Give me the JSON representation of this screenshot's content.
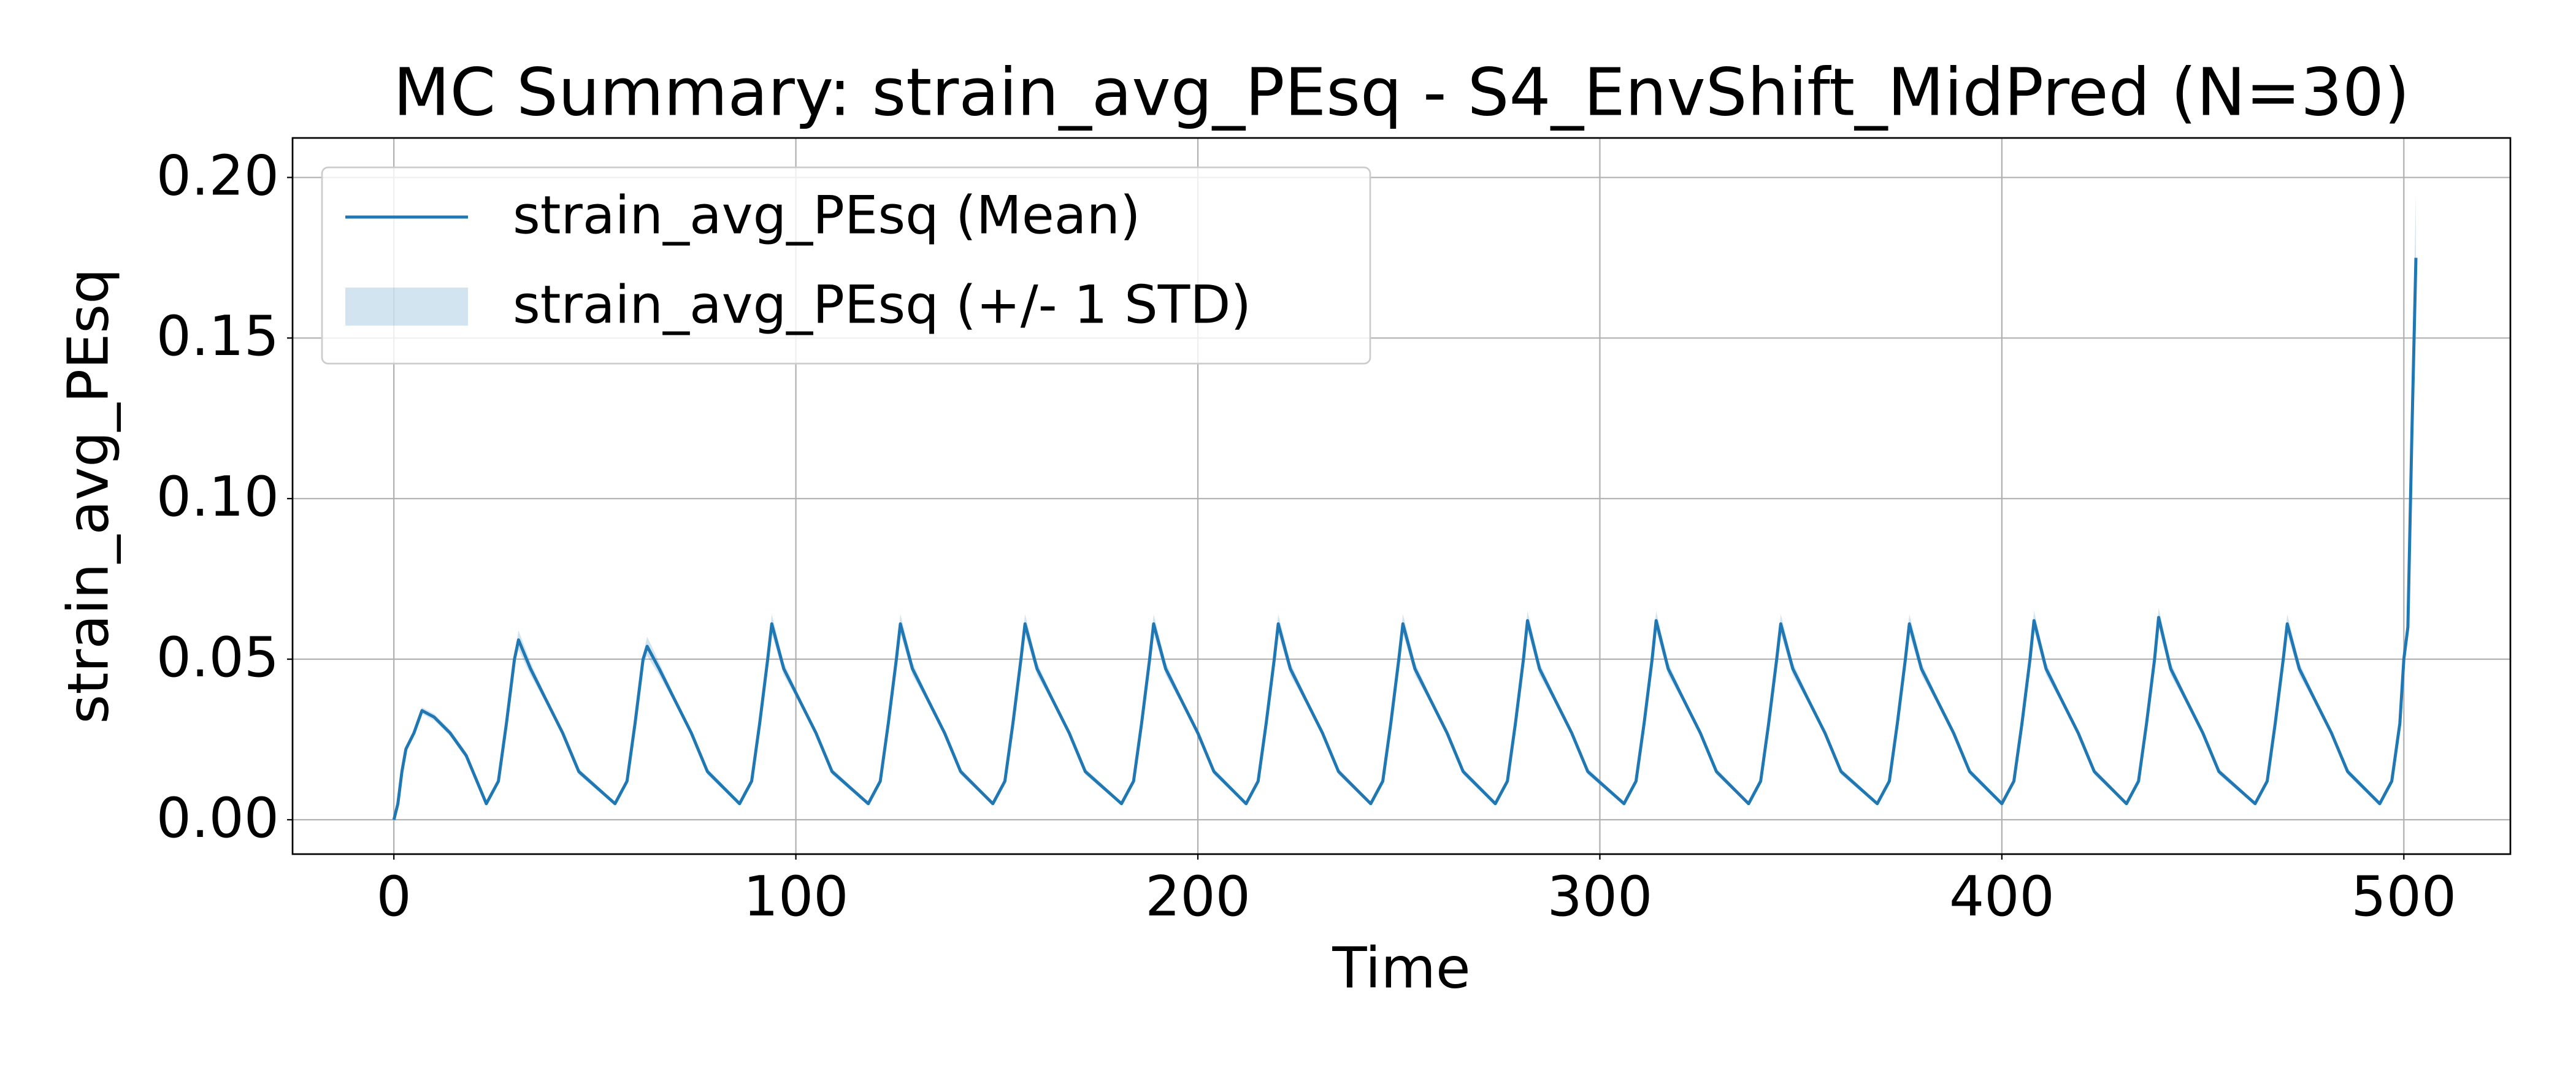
{
  "chart_data": {
    "type": "line",
    "title": "MC Summary: strain_avg_PEsq - S4_EnvShift_MidPred (N=30)",
    "x_label": "Time",
    "y_label": "strain_avg_PEsq",
    "x": [
      0,
      1,
      2,
      3,
      5,
      7,
      10,
      14,
      18,
      21,
      23,
      26,
      28,
      30,
      31,
      34,
      38,
      42,
      46,
      55,
      58,
      60,
      62,
      63,
      66,
      70,
      74,
      78,
      86,
      89,
      91,
      93,
      94,
      97,
      101,
      105,
      109,
      118,
      121,
      123,
      125,
      126,
      129,
      133,
      137,
      141,
      149,
      152,
      154,
      156,
      157,
      160,
      164,
      168,
      172,
      181,
      184,
      186,
      188,
      189,
      192,
      196,
      200,
      204,
      212,
      215,
      217,
      219,
      220,
      223,
      227,
      231,
      235,
      243,
      246,
      248,
      250,
      251,
      254,
      258,
      262,
      266,
      274,
      277,
      279,
      281,
      282,
      285,
      289,
      293,
      297,
      306,
      309,
      311,
      313,
      314,
      317,
      321,
      325,
      329,
      337,
      340,
      342,
      344,
      345,
      348,
      352,
      356,
      360,
      369,
      372,
      374,
      376,
      377,
      380,
      384,
      388,
      392,
      400,
      403,
      405,
      407,
      408,
      411,
      415,
      419,
      423,
      431,
      434,
      436,
      438,
      439,
      442,
      446,
      450,
      454,
      463,
      466,
      468,
      470,
      471,
      474,
      478,
      482,
      486,
      494,
      497,
      499,
      500,
      501,
      502,
      503
    ],
    "series": [
      {
        "name": "strain_avg_PEsq (Mean)",
        "color": "#1f77b4",
        "values": [
          0.0,
          0.005,
          0.015,
          0.022,
          0.027,
          0.034,
          0.032,
          0.027,
          0.02,
          0.011,
          0.005,
          0.012,
          0.03,
          0.05,
          0.056,
          0.047,
          0.037,
          0.027,
          0.015,
          0.005,
          0.012,
          0.03,
          0.05,
          0.054,
          0.047,
          0.037,
          0.027,
          0.015,
          0.005,
          0.012,
          0.03,
          0.05,
          0.061,
          0.047,
          0.037,
          0.027,
          0.015,
          0.005,
          0.012,
          0.03,
          0.05,
          0.061,
          0.047,
          0.037,
          0.027,
          0.015,
          0.005,
          0.012,
          0.03,
          0.05,
          0.061,
          0.047,
          0.037,
          0.027,
          0.015,
          0.005,
          0.012,
          0.03,
          0.05,
          0.061,
          0.047,
          0.037,
          0.027,
          0.015,
          0.005,
          0.012,
          0.03,
          0.05,
          0.061,
          0.047,
          0.037,
          0.027,
          0.015,
          0.005,
          0.012,
          0.03,
          0.05,
          0.061,
          0.047,
          0.037,
          0.027,
          0.015,
          0.005,
          0.012,
          0.03,
          0.05,
          0.062,
          0.047,
          0.037,
          0.027,
          0.015,
          0.005,
          0.012,
          0.03,
          0.05,
          0.062,
          0.047,
          0.037,
          0.027,
          0.015,
          0.005,
          0.012,
          0.03,
          0.05,
          0.061,
          0.047,
          0.037,
          0.027,
          0.015,
          0.005,
          0.012,
          0.03,
          0.05,
          0.061,
          0.047,
          0.037,
          0.027,
          0.015,
          0.005,
          0.012,
          0.03,
          0.05,
          0.062,
          0.047,
          0.037,
          0.027,
          0.015,
          0.005,
          0.012,
          0.03,
          0.05,
          0.063,
          0.047,
          0.037,
          0.027,
          0.015,
          0.005,
          0.012,
          0.03,
          0.05,
          0.061,
          0.047,
          0.037,
          0.027,
          0.015,
          0.005,
          0.012,
          0.03,
          0.05,
          0.06,
          0.12,
          0.175
        ]
      },
      {
        "name": "strain_avg_PEsq (+/- 1 STD)",
        "color": "#1f77b4",
        "opacity": 0.2,
        "values": [
          0,
          0.0005,
          0.001,
          0.001,
          0.001,
          0.001,
          0.001,
          0.001,
          0.001,
          0.001,
          0.0005,
          0.001,
          0.001,
          0.0015,
          0.003,
          0.002,
          0.001,
          0.001,
          0.001,
          0.0005,
          0.001,
          0.001,
          0.0015,
          0.003,
          0.002,
          0.001,
          0.001,
          0.001,
          0.0005,
          0.001,
          0.001,
          0.0015,
          0.003,
          0.002,
          0.001,
          0.001,
          0.001,
          0.0005,
          0.001,
          0.001,
          0.0015,
          0.003,
          0.002,
          0.001,
          0.001,
          0.001,
          0.0005,
          0.001,
          0.001,
          0.0015,
          0.003,
          0.002,
          0.001,
          0.001,
          0.001,
          0.0005,
          0.001,
          0.001,
          0.0015,
          0.003,
          0.002,
          0.001,
          0.001,
          0.001,
          0.0005,
          0.001,
          0.001,
          0.0015,
          0.003,
          0.002,
          0.001,
          0.001,
          0.001,
          0.0005,
          0.001,
          0.001,
          0.0015,
          0.003,
          0.002,
          0.001,
          0.001,
          0.001,
          0.0005,
          0.001,
          0.001,
          0.0015,
          0.003,
          0.002,
          0.001,
          0.001,
          0.001,
          0.0005,
          0.001,
          0.001,
          0.0015,
          0.003,
          0.002,
          0.001,
          0.001,
          0.001,
          0.0005,
          0.001,
          0.001,
          0.0015,
          0.003,
          0.002,
          0.001,
          0.001,
          0.001,
          0.0005,
          0.001,
          0.001,
          0.0015,
          0.003,
          0.002,
          0.001,
          0.001,
          0.001,
          0.0005,
          0.001,
          0.001,
          0.0015,
          0.003,
          0.002,
          0.001,
          0.001,
          0.001,
          0.0005,
          0.001,
          0.001,
          0.0015,
          0.003,
          0.002,
          0.001,
          0.001,
          0.001,
          0.0005,
          0.001,
          0.001,
          0.0015,
          0.003,
          0.002,
          0.001,
          0.001,
          0.001,
          0.0005,
          0.001,
          0.001,
          0.002,
          0.003,
          0.01,
          0.02
        ]
      }
    ],
    "xlim": [
      -25.2,
      526.5
    ],
    "ylim": [
      -0.0107,
      0.2123
    ],
    "xticks": [
      0,
      100,
      200,
      300,
      400,
      500
    ],
    "yticks": [
      {
        "value": 0,
        "label": "0.00"
      },
      0.05,
      {
        "value": 0.1,
        "label": "0.10"
      },
      0.15,
      {
        "value": 0.2,
        "label": "0.20"
      }
    ],
    "grid": true,
    "legend": "upper left"
  }
}
